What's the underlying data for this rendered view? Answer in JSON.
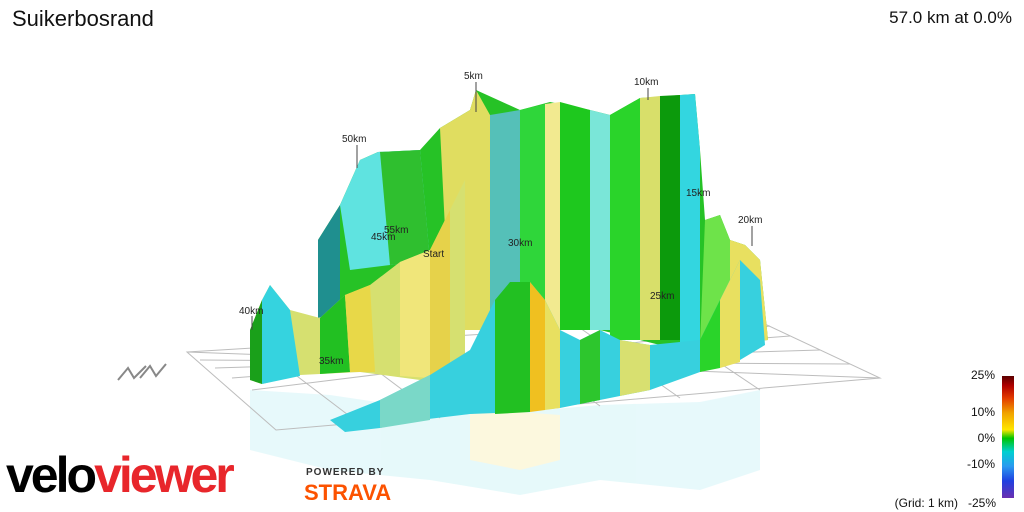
{
  "header": {
    "title": "Suikerbosrand",
    "summary": "57.0 km at 0.0%"
  },
  "profile_labels": [
    "5km",
    "10km",
    "15km",
    "20km",
    "25km",
    "30km",
    "35km",
    "40km",
    "45km",
    "50km",
    "55km",
    "Start"
  ],
  "legend": {
    "labels": [
      "25%",
      "10%",
      "0%",
      "-10%",
      "-25%"
    ],
    "grid_note": "(Grid: 1 km)"
  },
  "branding": {
    "logo_part1": "velo",
    "logo_part2": "viewer",
    "powered_by": "POWERED BY",
    "strava": "STRAVA"
  },
  "colors": {
    "green": "#22c022",
    "dark_green": "#0a8a0a",
    "cyan": "#33d6e0",
    "yellow": "#e8e060",
    "gold": "#f0c020",
    "teal": "#58c8b8",
    "grid": "#bdbdbd",
    "logo_red": "#e8262b",
    "strava_orange": "#fc5200"
  }
}
